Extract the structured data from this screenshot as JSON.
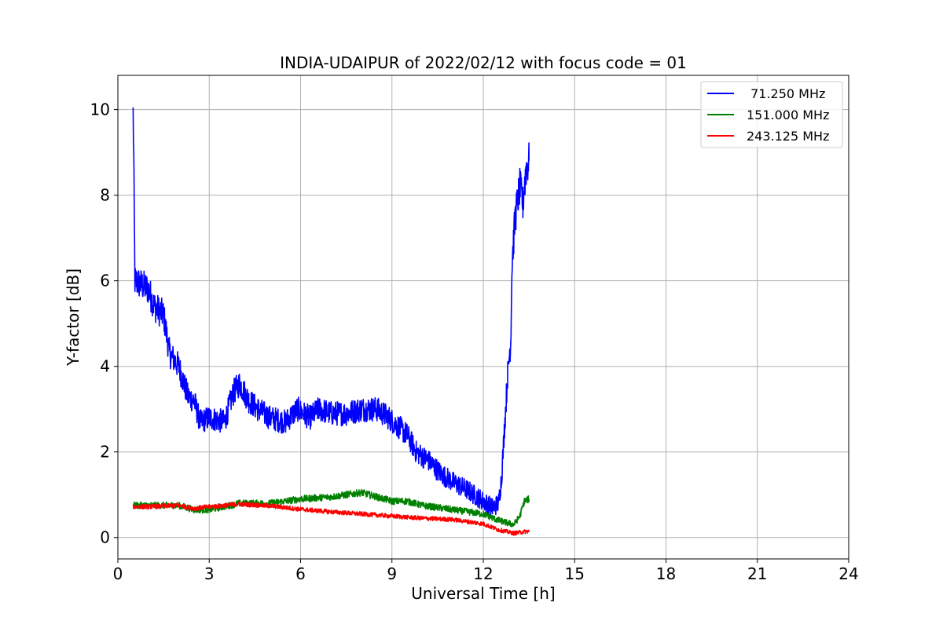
{
  "chart_data": {
    "type": "line",
    "title": "INDIA-UDAIPUR of 2022/02/12 with focus code = 01",
    "xlabel": "Universal Time [h]",
    "ylabel": "Y-factor [dB]",
    "xlim": [
      0,
      24
    ],
    "ylim": [
      -0.5,
      10.8
    ],
    "xticks": [
      0,
      3,
      6,
      9,
      12,
      15,
      18,
      21,
      24
    ],
    "yticks": [
      0,
      2,
      4,
      6,
      8,
      10
    ],
    "grid": true,
    "legend_position": "top-right",
    "series": [
      {
        "name": " 71.250 MHz",
        "color": "#0000ff",
        "noise": 0.35,
        "points": [
          [
            0.5,
            9.9
          ],
          [
            0.52,
            8.9
          ],
          [
            0.56,
            6.0
          ],
          [
            0.8,
            5.9
          ],
          [
            1.0,
            5.8
          ],
          [
            1.2,
            5.4
          ],
          [
            1.5,
            5.2
          ],
          [
            1.7,
            4.3
          ],
          [
            2.0,
            4.0
          ],
          [
            2.3,
            3.3
          ],
          [
            2.5,
            3.2
          ],
          [
            2.7,
            2.7
          ],
          [
            3.0,
            2.8
          ],
          [
            3.5,
            2.7
          ],
          [
            3.8,
            3.4
          ],
          [
            4.0,
            3.6
          ],
          [
            4.3,
            3.2
          ],
          [
            4.6,
            3.0
          ],
          [
            5.0,
            2.8
          ],
          [
            5.5,
            2.7
          ],
          [
            5.9,
            3.0
          ],
          [
            6.3,
            2.8
          ],
          [
            6.6,
            3.0
          ],
          [
            7.0,
            2.9
          ],
          [
            7.5,
            2.9
          ],
          [
            8.0,
            3.0
          ],
          [
            8.5,
            3.0
          ],
          [
            8.9,
            2.8
          ],
          [
            9.2,
            2.6
          ],
          [
            9.5,
            2.4
          ],
          [
            9.8,
            2.0
          ],
          [
            10.2,
            1.8
          ],
          [
            10.6,
            1.5
          ],
          [
            11.0,
            1.3
          ],
          [
            11.5,
            1.1
          ],
          [
            11.9,
            0.9
          ],
          [
            12.3,
            0.7
          ],
          [
            12.5,
            0.8
          ],
          [
            12.6,
            1.4
          ],
          [
            12.7,
            2.6
          ],
          [
            12.8,
            3.8
          ],
          [
            12.9,
            4.6
          ],
          [
            12.95,
            6.5
          ],
          [
            13.05,
            7.5
          ],
          [
            13.2,
            8.2
          ],
          [
            13.3,
            7.8
          ],
          [
            13.4,
            8.6
          ],
          [
            13.5,
            8.8
          ]
        ]
      },
      {
        "name": "151.000 MHz",
        "color": "#008000",
        "noise": 0.12,
        "points": [
          [
            0.5,
            0.75
          ],
          [
            1.0,
            0.75
          ],
          [
            2.0,
            0.75
          ],
          [
            2.5,
            0.65
          ],
          [
            3.0,
            0.65
          ],
          [
            4.0,
            0.8
          ],
          [
            5.0,
            0.8
          ],
          [
            6.0,
            0.9
          ],
          [
            7.0,
            0.95
          ],
          [
            7.5,
            1.0
          ],
          [
            8.0,
            1.05
          ],
          [
            8.5,
            0.95
          ],
          [
            9.0,
            0.85
          ],
          [
            9.5,
            0.85
          ],
          [
            10.0,
            0.75
          ],
          [
            11.0,
            0.65
          ],
          [
            12.0,
            0.55
          ],
          [
            12.5,
            0.4
          ],
          [
            13.0,
            0.3
          ],
          [
            13.2,
            0.5
          ],
          [
            13.35,
            0.85
          ],
          [
            13.5,
            0.9
          ]
        ]
      },
      {
        "name": "243.125 MHz",
        "color": "#ff0000",
        "noise": 0.08,
        "points": [
          [
            0.5,
            0.72
          ],
          [
            1.0,
            0.72
          ],
          [
            2.0,
            0.75
          ],
          [
            2.5,
            0.68
          ],
          [
            3.0,
            0.72
          ],
          [
            4.0,
            0.78
          ],
          [
            5.0,
            0.74
          ],
          [
            6.0,
            0.66
          ],
          [
            7.0,
            0.6
          ],
          [
            8.0,
            0.55
          ],
          [
            9.0,
            0.5
          ],
          [
            10.0,
            0.45
          ],
          [
            11.0,
            0.42
          ],
          [
            12.0,
            0.32
          ],
          [
            12.5,
            0.18
          ],
          [
            13.0,
            0.1
          ],
          [
            13.5,
            0.15
          ]
        ]
      }
    ]
  }
}
